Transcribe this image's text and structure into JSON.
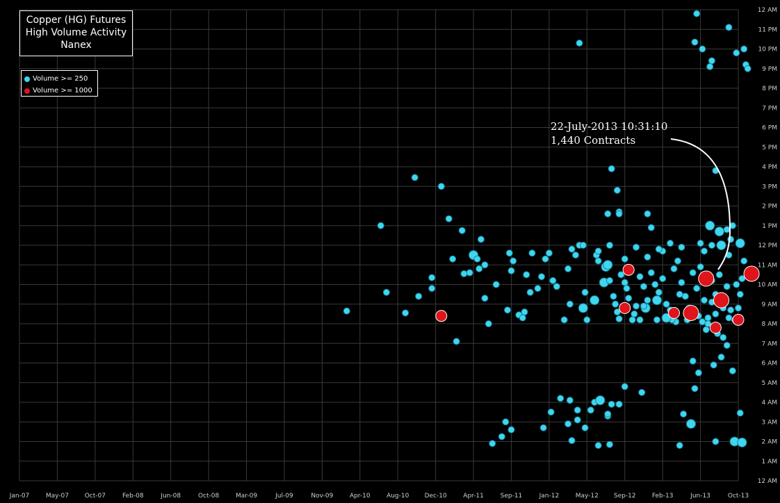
{
  "title_lines": [
    "Copper (HG) Futures",
    "High Volume Activity",
    "Nanex"
  ],
  "legend": [
    {
      "label": "Volume >= 250",
      "color": "#3fd6ef"
    },
    {
      "label": "Volume >= 1000",
      "color": "#e0141b"
    }
  ],
  "annotation": {
    "line1": "22-July-2013 10:31:10",
    "line2": "1,440 Contracts"
  },
  "colors": {
    "background": "#000000",
    "grid": "#3a3a3a",
    "small": "#3fd6ef",
    "large": "#e0141b"
  },
  "chart_data": {
    "type": "scatter",
    "title": "Copper (HG) Futures High Volume Activity",
    "x_axis": {
      "ticks": [
        "Jan-07",
        "May-07",
        "Oct-07",
        "Feb-08",
        "Jun-08",
        "Oct-08",
        "Mar-09",
        "Jul-09",
        "Nov-09",
        "Apr-10",
        "Aug-10",
        "Dec-10",
        "Apr-11",
        "Sep-11",
        "Jan-12",
        "May-12",
        "Sep-12",
        "Feb-13",
        "Jun-13",
        "Oct-13"
      ]
    },
    "y_axis": {
      "ticks": [
        "12 AM",
        "1 AM",
        "2 AM",
        "3 AM",
        "4 AM",
        "5 AM",
        "6 AM",
        "7 AM",
        "8 AM",
        "9 AM",
        "10 AM",
        "11 AM",
        "12 PM",
        "1 PM",
        "2 PM",
        "3 PM",
        "4 PM",
        "5 PM",
        "6 PM",
        "7 PM",
        "8 PM",
        "9 PM",
        "10 PM",
        "11 PM",
        "12 AM"
      ],
      "range_hours": [
        0,
        24
      ]
    },
    "grid": true,
    "legend_position": "top-left",
    "series": [
      {
        "name": "Volume >= 250",
        "color": "#3fd6ef",
        "points": [
          [
            8.65,
            8.65,
            1
          ],
          [
            9.55,
            13.0,
            1
          ],
          [
            9.7,
            9.6,
            1
          ],
          [
            10.2,
            8.55,
            1
          ],
          [
            10.55,
            9.4,
            1
          ],
          [
            10.45,
            15.45,
            1
          ],
          [
            10.9,
            10.35,
            1
          ],
          [
            10.9,
            9.8,
            1
          ],
          [
            11.15,
            15.0,
            1
          ],
          [
            11.35,
            13.35,
            1
          ],
          [
            11.45,
            11.3,
            1
          ],
          [
            11.55,
            7.1,
            1
          ],
          [
            11.7,
            12.75,
            1
          ],
          [
            11.75,
            10.55,
            1
          ],
          [
            11.9,
            10.6,
            1
          ],
          [
            12.0,
            11.5,
            2
          ],
          [
            12.1,
            11.3,
            1
          ],
          [
            12.15,
            10.8,
            1
          ],
          [
            12.2,
            12.3,
            1
          ],
          [
            12.3,
            11.0,
            1
          ],
          [
            12.3,
            9.3,
            1
          ],
          [
            12.4,
            8.0,
            1
          ],
          [
            12.6,
            10.0,
            1
          ],
          [
            12.9,
            8.7,
            1
          ],
          [
            12.95,
            11.6,
            1
          ],
          [
            13.0,
            10.7,
            1
          ],
          [
            13.05,
            11.2,
            1
          ],
          [
            13.2,
            8.45,
            1
          ],
          [
            13.3,
            8.3,
            1
          ],
          [
            13.35,
            8.6,
            1
          ],
          [
            13.5,
            9.6,
            1
          ],
          [
            13.55,
            11.6,
            1
          ],
          [
            13.4,
            10.5,
            1
          ],
          [
            13.7,
            9.8,
            1
          ],
          [
            13.8,
            10.4,
            1
          ],
          [
            13.9,
            11.3,
            1
          ],
          [
            14.0,
            11.6,
            1
          ],
          [
            14.1,
            10.2,
            1
          ],
          [
            14.2,
            9.9,
            1
          ],
          [
            14.4,
            8.2,
            1
          ],
          [
            14.5,
            10.8,
            1
          ],
          [
            14.7,
            11.5,
            1
          ],
          [
            14.8,
            12.0,
            1
          ],
          [
            14.95,
            9.6,
            1
          ],
          [
            15.0,
            8.2,
            1
          ],
          [
            15.25,
            11.5,
            1
          ],
          [
            15.3,
            11.2,
            1
          ],
          [
            15.45,
            10.1,
            2
          ],
          [
            15.5,
            10.9,
            2
          ],
          [
            15.55,
            11.0,
            2
          ],
          [
            15.6,
            10.2,
            1
          ],
          [
            15.7,
            9.4,
            1
          ],
          [
            15.75,
            9.0,
            1
          ],
          [
            15.8,
            8.6,
            1
          ],
          [
            15.9,
            10.5,
            1
          ],
          [
            16.0,
            10.1,
            1
          ],
          [
            16.05,
            9.8,
            1
          ],
          [
            16.1,
            9.3,
            1
          ],
          [
            16.2,
            8.2,
            1
          ],
          [
            16.3,
            8.9,
            1
          ],
          [
            16.4,
            10.4,
            1
          ],
          [
            16.5,
            9.9,
            1
          ],
          [
            16.6,
            9.2,
            1
          ],
          [
            16.7,
            10.6,
            1
          ],
          [
            16.8,
            10.0,
            1
          ],
          [
            16.9,
            9.6,
            1
          ],
          [
            17.0,
            10.3,
            1
          ],
          [
            17.1,
            9.0,
            1
          ],
          [
            17.2,
            8.7,
            1
          ],
          [
            17.3,
            10.8,
            1
          ],
          [
            17.4,
            11.2,
            1
          ],
          [
            17.5,
            10.1,
            1
          ],
          [
            17.6,
            9.4,
            1
          ],
          [
            17.7,
            8.5,
            1
          ],
          [
            17.8,
            10.6,
            1
          ],
          [
            17.9,
            9.8,
            1
          ],
          [
            18.0,
            10.9,
            1
          ],
          [
            18.1,
            9.2,
            1
          ],
          [
            18.2,
            8.3,
            1
          ],
          [
            18.3,
            10.2,
            1
          ],
          [
            18.4,
            9.5,
            1
          ],
          [
            18.5,
            10.5,
            1
          ],
          [
            18.6,
            8.8,
            1
          ],
          [
            18.7,
            9.9,
            1
          ],
          [
            18.75,
            11.5,
            1
          ],
          [
            18.8,
            12.3,
            1
          ],
          [
            18.85,
            13.0,
            1
          ],
          [
            18.3,
            12.0,
            1
          ],
          [
            18.0,
            12.1,
            1
          ],
          [
            17.5,
            11.9,
            1
          ],
          [
            17.2,
            12.1,
            1
          ],
          [
            17.0,
            11.7,
            1
          ],
          [
            16.6,
            11.4,
            1
          ],
          [
            16.3,
            11.9,
            1
          ],
          [
            16.0,
            11.3,
            1
          ],
          [
            15.6,
            12.0,
            1
          ],
          [
            15.3,
            11.7,
            1
          ],
          [
            14.9,
            12.0,
            1
          ],
          [
            14.6,
            11.8,
            1
          ],
          [
            16.7,
            12.9,
            1
          ],
          [
            18.7,
            12.8,
            1
          ],
          [
            18.1,
            11.7,
            1
          ],
          [
            18.55,
            12.0,
            2
          ],
          [
            18.5,
            12.7,
            2
          ],
          [
            18.25,
            13.0,
            2
          ],
          [
            17.35,
            8.1,
            1
          ],
          [
            17.65,
            8.2,
            1
          ],
          [
            18.05,
            8.1,
            1
          ],
          [
            18.15,
            7.7,
            1
          ],
          [
            18.2,
            8.0,
            1
          ],
          [
            18.45,
            7.5,
            1
          ],
          [
            18.6,
            7.3,
            1
          ],
          [
            18.7,
            6.9,
            1
          ],
          [
            18.75,
            8.3,
            1
          ],
          [
            18.8,
            8.7,
            1
          ],
          [
            18.9,
            8.2,
            1
          ],
          [
            19.0,
            8.8,
            1
          ],
          [
            19.05,
            8.3,
            1
          ],
          [
            18.95,
            10.0,
            1
          ],
          [
            19.05,
            9.5,
            1
          ],
          [
            19.1,
            10.3,
            1
          ],
          [
            19.15,
            11.2,
            1
          ],
          [
            19.25,
            10.5,
            1
          ],
          [
            19.05,
            12.1,
            2
          ],
          [
            17.25,
            8.2,
            1
          ],
          [
            17.1,
            8.3,
            2
          ],
          [
            16.85,
            8.2,
            1
          ],
          [
            16.4,
            8.2,
            1
          ],
          [
            16.25,
            8.5,
            1
          ],
          [
            16.55,
            8.8,
            2
          ],
          [
            16.85,
            9.2,
            2
          ],
          [
            17.7,
            8.8,
            1
          ],
          [
            17.95,
            8.4,
            1
          ],
          [
            17.45,
            9.5,
            1
          ],
          [
            18.3,
            9.1,
            1
          ],
          [
            18.4,
            8.5,
            1
          ],
          [
            15.85,
            8.25,
            1
          ],
          [
            14.55,
            9.0,
            1
          ],
          [
            14.9,
            8.8,
            2
          ],
          [
            15.2,
            9.2,
            2
          ],
          [
            16.5,
            8.9,
            1
          ],
          [
            17.8,
            6.1,
            1
          ],
          [
            17.95,
            5.5,
            1
          ],
          [
            18.35,
            5.9,
            1
          ],
          [
            18.55,
            6.3,
            1
          ],
          [
            18.85,
            5.6,
            1
          ],
          [
            17.85,
            4.7,
            1
          ],
          [
            14.3,
            4.2,
            1
          ],
          [
            14.55,
            4.1,
            1
          ],
          [
            14.75,
            3.6,
            1
          ],
          [
            14.95,
            2.7,
            1
          ],
          [
            15.1,
            3.6,
            1
          ],
          [
            15.2,
            4.0,
            1
          ],
          [
            15.35,
            4.1,
            2
          ],
          [
            15.55,
            3.3,
            1
          ],
          [
            15.85,
            3.9,
            1
          ],
          [
            16.0,
            4.8,
            1
          ],
          [
            16.45,
            4.5,
            1
          ],
          [
            15.6,
            1.85,
            1
          ],
          [
            17.45,
            1.8,
            1
          ],
          [
            17.55,
            3.4,
            1
          ],
          [
            17.75,
            2.9,
            2
          ],
          [
            18.4,
            2.0,
            1
          ],
          [
            18.9,
            2.0,
            2
          ],
          [
            19.1,
            1.95,
            2
          ],
          [
            19.05,
            3.45,
            1
          ],
          [
            12.5,
            1.9,
            1
          ],
          [
            12.75,
            2.25,
            1
          ],
          [
            12.85,
            3.0,
            1
          ],
          [
            13.0,
            2.6,
            1
          ],
          [
            13.85,
            2.7,
            1
          ],
          [
            14.05,
            3.5,
            1
          ],
          [
            14.5,
            2.9,
            1
          ],
          [
            14.6,
            2.05,
            1
          ],
          [
            14.75,
            3.1,
            1
          ],
          [
            15.55,
            3.4,
            1
          ],
          [
            15.3,
            1.8,
            1
          ],
          [
            15.65,
            3.9,
            1
          ],
          [
            17.9,
            23.8,
            1
          ],
          [
            18.75,
            23.1,
            1
          ],
          [
            17.85,
            22.35,
            1
          ],
          [
            18.05,
            22.0,
            1
          ],
          [
            18.3,
            21.4,
            1
          ],
          [
            18.25,
            21.1,
            1
          ],
          [
            18.95,
            21.8,
            1
          ],
          [
            19.15,
            22.0,
            1
          ],
          [
            19.2,
            21.2,
            1
          ],
          [
            19.25,
            21.0,
            1
          ],
          [
            14.8,
            22.3,
            1
          ],
          [
            15.65,
            15.9,
            1
          ],
          [
            18.4,
            15.8,
            1
          ],
          [
            15.8,
            14.8,
            1
          ],
          [
            15.85,
            13.7,
            1
          ],
          [
            15.85,
            13.6,
            1
          ],
          [
            15.55,
            13.6,
            1
          ],
          [
            16.6,
            13.6,
            1
          ],
          [
            16.9,
            11.8,
            1
          ]
        ]
      },
      {
        "name": "Volume >= 1000",
        "color": "#e0141b",
        "points": [
          [
            11.15,
            8.4,
            1
          ],
          [
            16.1,
            10.75,
            1
          ],
          [
            16.0,
            8.8,
            1
          ],
          [
            17.3,
            8.55,
            1
          ],
          [
            17.75,
            8.55,
            2
          ],
          [
            18.15,
            10.3,
            2
          ],
          [
            18.55,
            9.2,
            2
          ],
          [
            18.4,
            7.8,
            1
          ],
          [
            19.0,
            8.2,
            1
          ],
          [
            19.35,
            10.55,
            2
          ]
        ]
      }
    ]
  }
}
